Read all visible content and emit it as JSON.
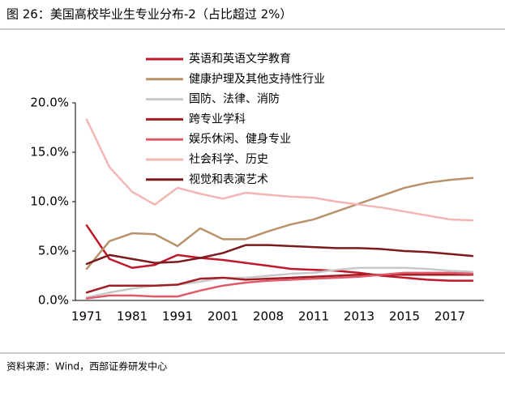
{
  "chart_data": {
    "type": "line",
    "title": "图 26：美国高校毕业生专业分布-2（占比超过 2%）",
    "source": "资料来源：Wind，西部证券研发中心",
    "categories": [
      "1971",
      null,
      "1981",
      null,
      "1991",
      null,
      "2001",
      null,
      "2008",
      null,
      "2011",
      null,
      "2013",
      null,
      "2015",
      null,
      "2017",
      null
    ],
    "ylim": [
      0,
      20
    ],
    "yticks": [
      {
        "value": 0,
        "label": "0.0%"
      },
      {
        "value": 5,
        "label": "5.0%"
      },
      {
        "value": 10,
        "label": "10.0%"
      },
      {
        "value": 15,
        "label": "15.0%"
      },
      {
        "value": 20,
        "label": "20.0%"
      }
    ],
    "series": [
      {
        "name": "英语和英语文学教育",
        "color": "#c0182a",
        "values": [
          7.6,
          4.2,
          3.3,
          3.6,
          4.6,
          4.3,
          4.1,
          3.8,
          3.5,
          3.2,
          3.1,
          3.0,
          2.8,
          2.5,
          2.3,
          2.1,
          2.0,
          2.0
        ]
      },
      {
        "name": "健康护理及其他支持性行业",
        "color": "#b8926a",
        "values": [
          3.2,
          6.0,
          6.8,
          6.7,
          5.5,
          7.3,
          6.2,
          6.2,
          7.0,
          7.7,
          8.2,
          9.0,
          9.8,
          10.6,
          11.4,
          11.9,
          12.2,
          12.4
        ]
      },
      {
        "name": "国防、法律、消防",
        "color": "#c8c8c8",
        "values": [
          0.3,
          0.8,
          1.2,
          1.5,
          1.6,
          1.9,
          2.3,
          2.3,
          2.5,
          2.7,
          2.8,
          3.1,
          3.3,
          3.3,
          3.3,
          3.2,
          3.0,
          2.9
        ]
      },
      {
        "name": "跨专业学科",
        "color": "#a11d25",
        "values": [
          0.8,
          1.5,
          1.5,
          1.5,
          1.6,
          2.2,
          2.3,
          2.1,
          2.2,
          2.3,
          2.4,
          2.5,
          2.6,
          2.6,
          2.6,
          2.6,
          2.6,
          2.6
        ]
      },
      {
        "name": "娱乐休闲、健身专业",
        "color": "#e05a6a",
        "values": [
          0.2,
          0.5,
          0.5,
          0.4,
          0.4,
          1.0,
          1.5,
          1.8,
          2.0,
          2.1,
          2.2,
          2.3,
          2.4,
          2.6,
          2.8,
          2.8,
          2.8,
          2.7
        ]
      },
      {
        "name": "社会科学、历史",
        "color": "#f4b6b3",
        "values": [
          18.3,
          13.5,
          11.0,
          9.7,
          11.4,
          10.8,
          10.3,
          10.9,
          10.7,
          10.5,
          10.4,
          10.0,
          9.7,
          9.4,
          9.0,
          8.6,
          8.2,
          8.1
        ]
      },
      {
        "name": "视觉和表演艺术",
        "color": "#7b1a1f",
        "values": [
          3.7,
          4.6,
          4.2,
          3.8,
          3.9,
          4.3,
          4.8,
          5.6,
          5.6,
          5.5,
          5.4,
          5.3,
          5.3,
          5.2,
          5.0,
          4.9,
          4.7,
          4.5
        ]
      }
    ]
  }
}
